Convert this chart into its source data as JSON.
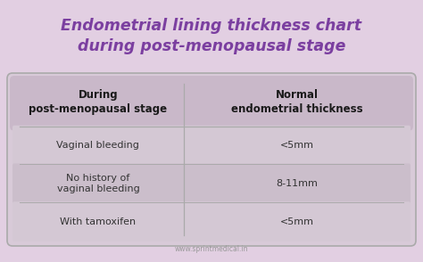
{
  "title_line1": "Endometrial lining thickness chart",
  "title_line2": "during post-menopausal stage",
  "title_color": "#7b3fa0",
  "background_color": "#e2cfe2",
  "table_bg_color": "#d8cad8",
  "table_header_bg": "#c9b8c9",
  "border_color": "#aaaaaa",
  "col1_header": "During\npost-menopausal stage",
  "col2_header": "Normal\nendometrial thickness",
  "rows": [
    [
      "Vaginal bleeding",
      "<5mm"
    ],
    [
      "No history of\nvaginal bleeding",
      "8-11mm"
    ],
    [
      "With tamoxifen",
      "<5mm"
    ]
  ],
  "row_colors": [
    "#d4c8d4",
    "#cbbecb"
  ],
  "watermark": "www.sprintmedical.in",
  "header_fontsize": 8.5,
  "row_fontsize": 8.0,
  "title_fontsize": 12.5
}
